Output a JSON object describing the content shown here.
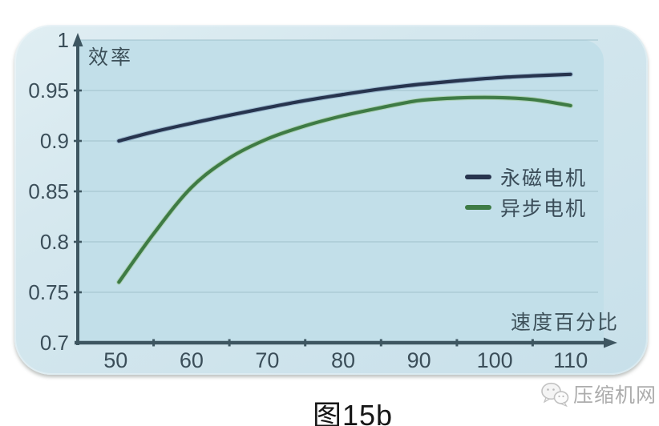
{
  "figure": {
    "caption": "图15b",
    "watermark": {
      "icon": "wechat-icon",
      "text": "压缩机网"
    }
  },
  "chart_data": {
    "type": "line",
    "title": "",
    "ylabel": "效率",
    "xlabel": "速度百分比",
    "xlim": [
      45,
      115
    ],
    "ylim": [
      0.7,
      1.0
    ],
    "grid": "horizontal-only",
    "legend_position": "middle-right",
    "x_ticks": [
      50,
      60,
      70,
      80,
      90,
      100,
      110
    ],
    "y_ticks": [
      0.7,
      0.75,
      0.8,
      0.85,
      0.9,
      0.95,
      1
    ],
    "y_tick_labels": [
      "0.7",
      "0.75",
      "0.8",
      "0.85",
      "0.9",
      "0.95",
      "1"
    ],
    "x": [
      50,
      55,
      60,
      65,
      70,
      75,
      80,
      85,
      90,
      95,
      100,
      105,
      110
    ],
    "series": [
      {
        "name": "永磁电机",
        "color": "#27344e",
        "halo_color": "#5f7da8",
        "values": [
          0.9,
          0.909,
          0.9175,
          0.9255,
          0.933,
          0.94,
          0.946,
          0.9515,
          0.956,
          0.9595,
          0.9625,
          0.9645,
          0.966
        ]
      },
      {
        "name": "异步电机",
        "color": "#3e7b45",
        "halo_color": "#8cbd67",
        "values": [
          0.76,
          0.808,
          0.854,
          0.883,
          0.902,
          0.915,
          0.925,
          0.933,
          0.94,
          0.9425,
          0.943,
          0.941,
          0.935
        ]
      }
    ],
    "style": {
      "plot_bg": "#c2dfe9",
      "grid_color": "#9fc0cb",
      "axis_color": "#3e5661",
      "tick_label_color": "#3b4e59"
    }
  }
}
